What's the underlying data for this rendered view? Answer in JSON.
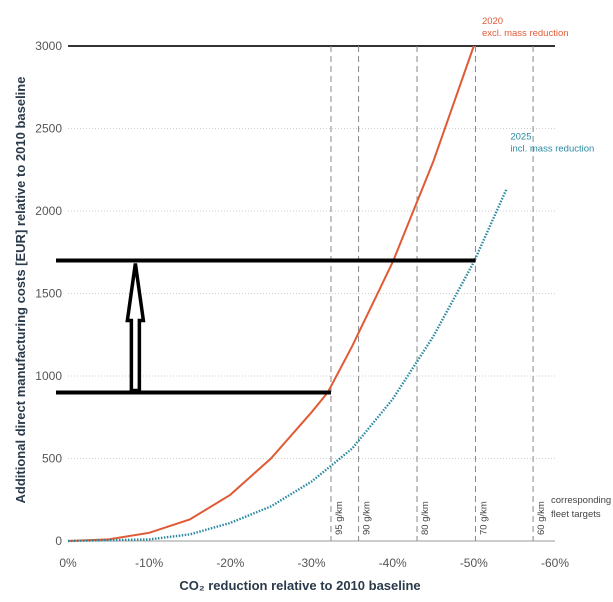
{
  "chart_data": {
    "type": "line",
    "xlabel": "CO₂ reduction relative to 2010 baseline",
    "ylabel": "Additional direct manufacturing costs [EUR] relative to 2010 baseline",
    "xlim": [
      0,
      -60
    ],
    "ylim": [
      0,
      3000
    ],
    "x_ticks": [
      "0%",
      "-10%",
      "-20%",
      "-30%",
      "-40%",
      "-50%",
      "-60%"
    ],
    "y_ticks": [
      "0",
      "500",
      "1000",
      "1500",
      "2000",
      "2500",
      "3000"
    ],
    "series": [
      {
        "name": "2020 excl. mass reduction",
        "color": "#e05a36",
        "style": "solid",
        "x": [
          0,
          -5,
          -10,
          -15,
          -20,
          -25,
          -30,
          -32,
          -35,
          -40,
          -45,
          -50
        ],
        "y": [
          0,
          10,
          50,
          130,
          280,
          500,
          780,
          900,
          1180,
          1690,
          2300,
          3000
        ]
      },
      {
        "name": "2025 incl. mass reduction",
        "color": "#2a8aa0",
        "style": "dotted",
        "x": [
          0,
          -10,
          -15,
          -20,
          -25,
          -30,
          -35,
          -40,
          -45,
          -50,
          -54
        ],
        "y": [
          0,
          10,
          40,
          110,
          210,
          360,
          560,
          860,
          1240,
          1690,
          2130
        ]
      }
    ],
    "curve_labels": [
      {
        "series": 0,
        "line1": "2020",
        "line2": "excl. mass reduction",
        "x": -51,
        "y": 3050
      },
      {
        "series": 1,
        "line1": "2025",
        "line2": "incl. mass reduction",
        "x": -54.5,
        "y": 2350
      }
    ],
    "fleet_targets": [
      {
        "label": "95 g/km",
        "x": -32.4
      },
      {
        "label": "90 g/km",
        "x": -35.8
      },
      {
        "label": "80 g/km",
        "x": -43
      },
      {
        "label": "70 g/km",
        "x": -50.2
      },
      {
        "label": "60 g/km",
        "x": -57.3
      }
    ],
    "fleet_targets_caption": [
      "corresponding",
      "fleet targets"
    ],
    "annotations": {
      "upper_line_y": 1700,
      "lower_line_y": 900,
      "arrow_x": -8.3,
      "arrow_color": "#000000"
    },
    "grid": true,
    "grid_axis": "y"
  }
}
